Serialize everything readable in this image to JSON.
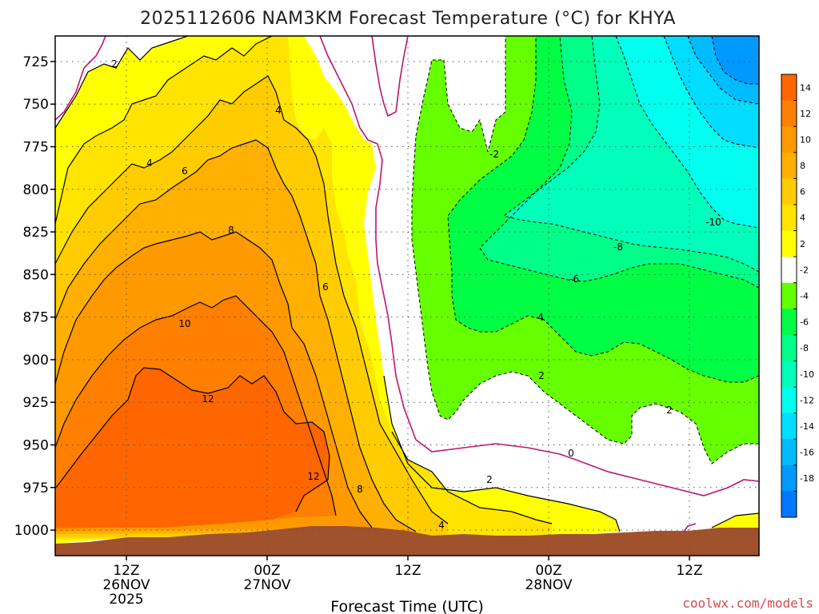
{
  "chart_data": {
    "type": "heatmap",
    "title": "2025112606 NAM3KM Forecast Temperature (°C) for KHYA",
    "xlabel": "Forecast Time (UTC)",
    "ylabel": "",
    "credit": "coolwx.com/models",
    "y_axis": {
      "unit": "hPa",
      "ticks": [
        725,
        750,
        775,
        800,
        825,
        850,
        875,
        900,
        925,
        950,
        975,
        1000
      ],
      "ylim": [
        1015,
        710
      ]
    },
    "x_axis": {
      "ticks": [
        {
          "lines": [
            "12Z",
            "26NOV",
            "2025"
          ]
        },
        {
          "lines": [
            "00Z",
            "27NOV"
          ]
        },
        {
          "lines": [
            "12Z"
          ]
        },
        {
          "lines": [
            "00Z",
            "28NOV"
          ]
        },
        {
          "lines": [
            "12Z"
          ]
        }
      ]
    },
    "colorbar": {
      "labels": [
        "14",
        "12",
        "10",
        "8",
        "6",
        "4",
        "2",
        "-2",
        "-4",
        "-6",
        "-8",
        "-10",
        "-12",
        "-14",
        "-16",
        "-18"
      ],
      "colors": [
        "#ff6600",
        "#ff7f00",
        "#ff9900",
        "#ffb000",
        "#ffcc00",
        "#ffe400",
        "#ffff00",
        "#ffffff",
        "#66ff00",
        "#00ff44",
        "#00ff88",
        "#00ffbb",
        "#00ffee",
        "#00ddff",
        "#00bbff",
        "#0099ff",
        "#0077ff"
      ]
    },
    "contour_labels": [
      {
        "text": "2",
        "color": "#000000"
      },
      {
        "text": "4",
        "color": "#000000"
      },
      {
        "text": "6",
        "color": "#000000"
      },
      {
        "text": "8",
        "color": "#000000"
      },
      {
        "text": "10",
        "color": "#000000"
      },
      {
        "text": "12",
        "color": "#000000"
      },
      {
        "text": "4",
        "color": "#000000"
      },
      {
        "text": "6",
        "color": "#000000"
      },
      {
        "text": "12",
        "color": "#000000"
      },
      {
        "text": "8",
        "color": "#000000"
      },
      {
        "text": "4",
        "color": "#000000"
      },
      {
        "text": "2",
        "color": "#000000"
      },
      {
        "text": "0",
        "color": "#000000"
      },
      {
        "text": "2",
        "color": "#000000"
      },
      {
        "text": "2",
        "color": "#000000"
      },
      {
        "text": "4",
        "color": "#000000"
      },
      {
        "text": "-2",
        "color": "#000000"
      },
      {
        "text": "-6",
        "color": "#000000"
      },
      {
        "text": "-8",
        "color": "#000000"
      },
      {
        "text": "-10",
        "color": "#000000"
      }
    ]
  }
}
